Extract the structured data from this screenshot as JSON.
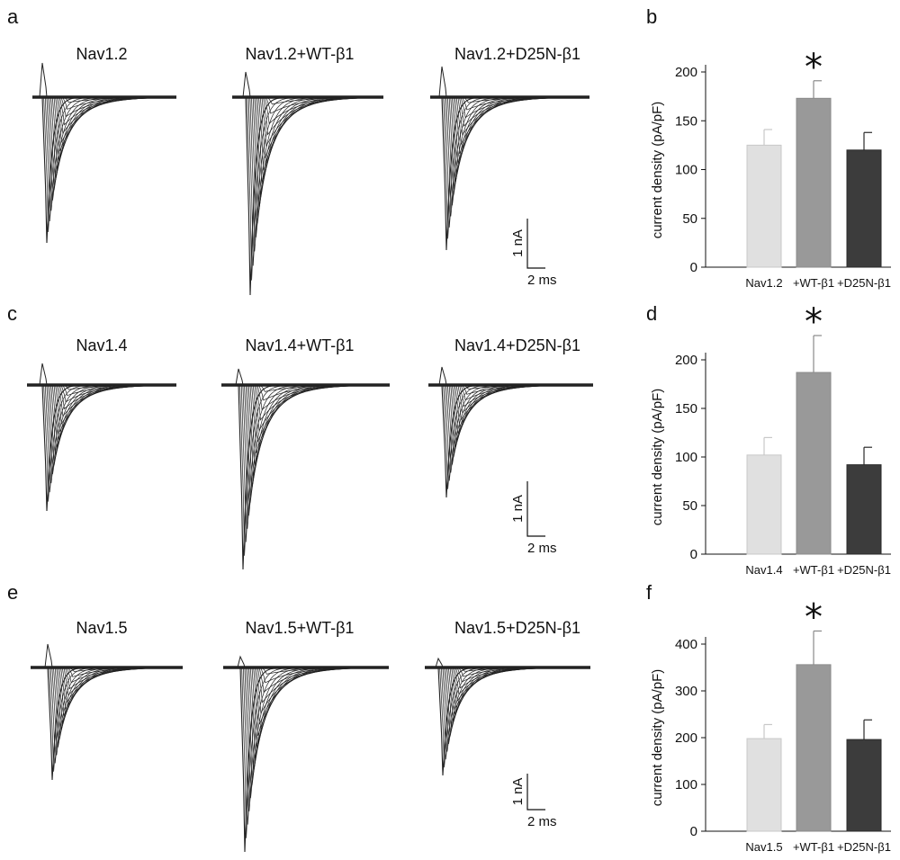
{
  "trace_rows": [
    {
      "panel": "a",
      "titles": [
        "Nav1.2",
        "Nav1.2+WT-β1",
        "Nav1.2+D25N-β1"
      ],
      "scale_current": "1 nA",
      "scale_time": "2 ms"
    },
    {
      "panel": "c",
      "titles": [
        "Nav1.4",
        "Nav1.4+WT-β1",
        "Nav1.4+D25N-β1"
      ],
      "scale_current": "1 nA",
      "scale_time": "2 ms"
    },
    {
      "panel": "e",
      "titles": [
        "Nav1.5",
        "Nav1.5+WT-β1",
        "Nav1.5+D25N-β1"
      ],
      "scale_current": "1 nA",
      "scale_time": "2 ms"
    }
  ],
  "colors": {
    "bar_light": "#e0e0e0",
    "bar_mid": "#999999",
    "bar_dark": "#3c3c3c",
    "trace": "#222222"
  },
  "chart_data": [
    {
      "panel": "b",
      "type": "bar",
      "categories": [
        "Nav1.2",
        "+WT-β1",
        "+D25N-β1"
      ],
      "values": [
        125,
        173,
        120
      ],
      "errors": [
        16,
        18,
        18
      ],
      "ylabel": "current density (pA/pF)",
      "ylim": [
        0,
        200
      ],
      "yticks": [
        0,
        50,
        100,
        150,
        200
      ],
      "significance": [
        "",
        "*",
        ""
      ]
    },
    {
      "panel": "d",
      "type": "bar",
      "categories": [
        "Nav1.4",
        "+WT-β1",
        "+D25N-β1"
      ],
      "values": [
        102,
        187,
        92
      ],
      "errors": [
        18,
        38,
        18
      ],
      "ylabel": "current density (pA/pF)",
      "ylim": [
        0,
        200
      ],
      "yticks": [
        0,
        50,
        100,
        150,
        200
      ],
      "significance": [
        "",
        "*",
        ""
      ]
    },
    {
      "panel": "f",
      "type": "bar",
      "categories": [
        "Nav1.5",
        "+WT-β1",
        "+D25N-β1"
      ],
      "values": [
        198,
        356,
        196
      ],
      "errors": [
        30,
        72,
        42
      ],
      "ylabel": "current density (pA/pF)",
      "ylim": [
        0,
        400
      ],
      "yticks": [
        0,
        100,
        200,
        300,
        400
      ],
      "significance": [
        "",
        "*",
        ""
      ]
    }
  ]
}
